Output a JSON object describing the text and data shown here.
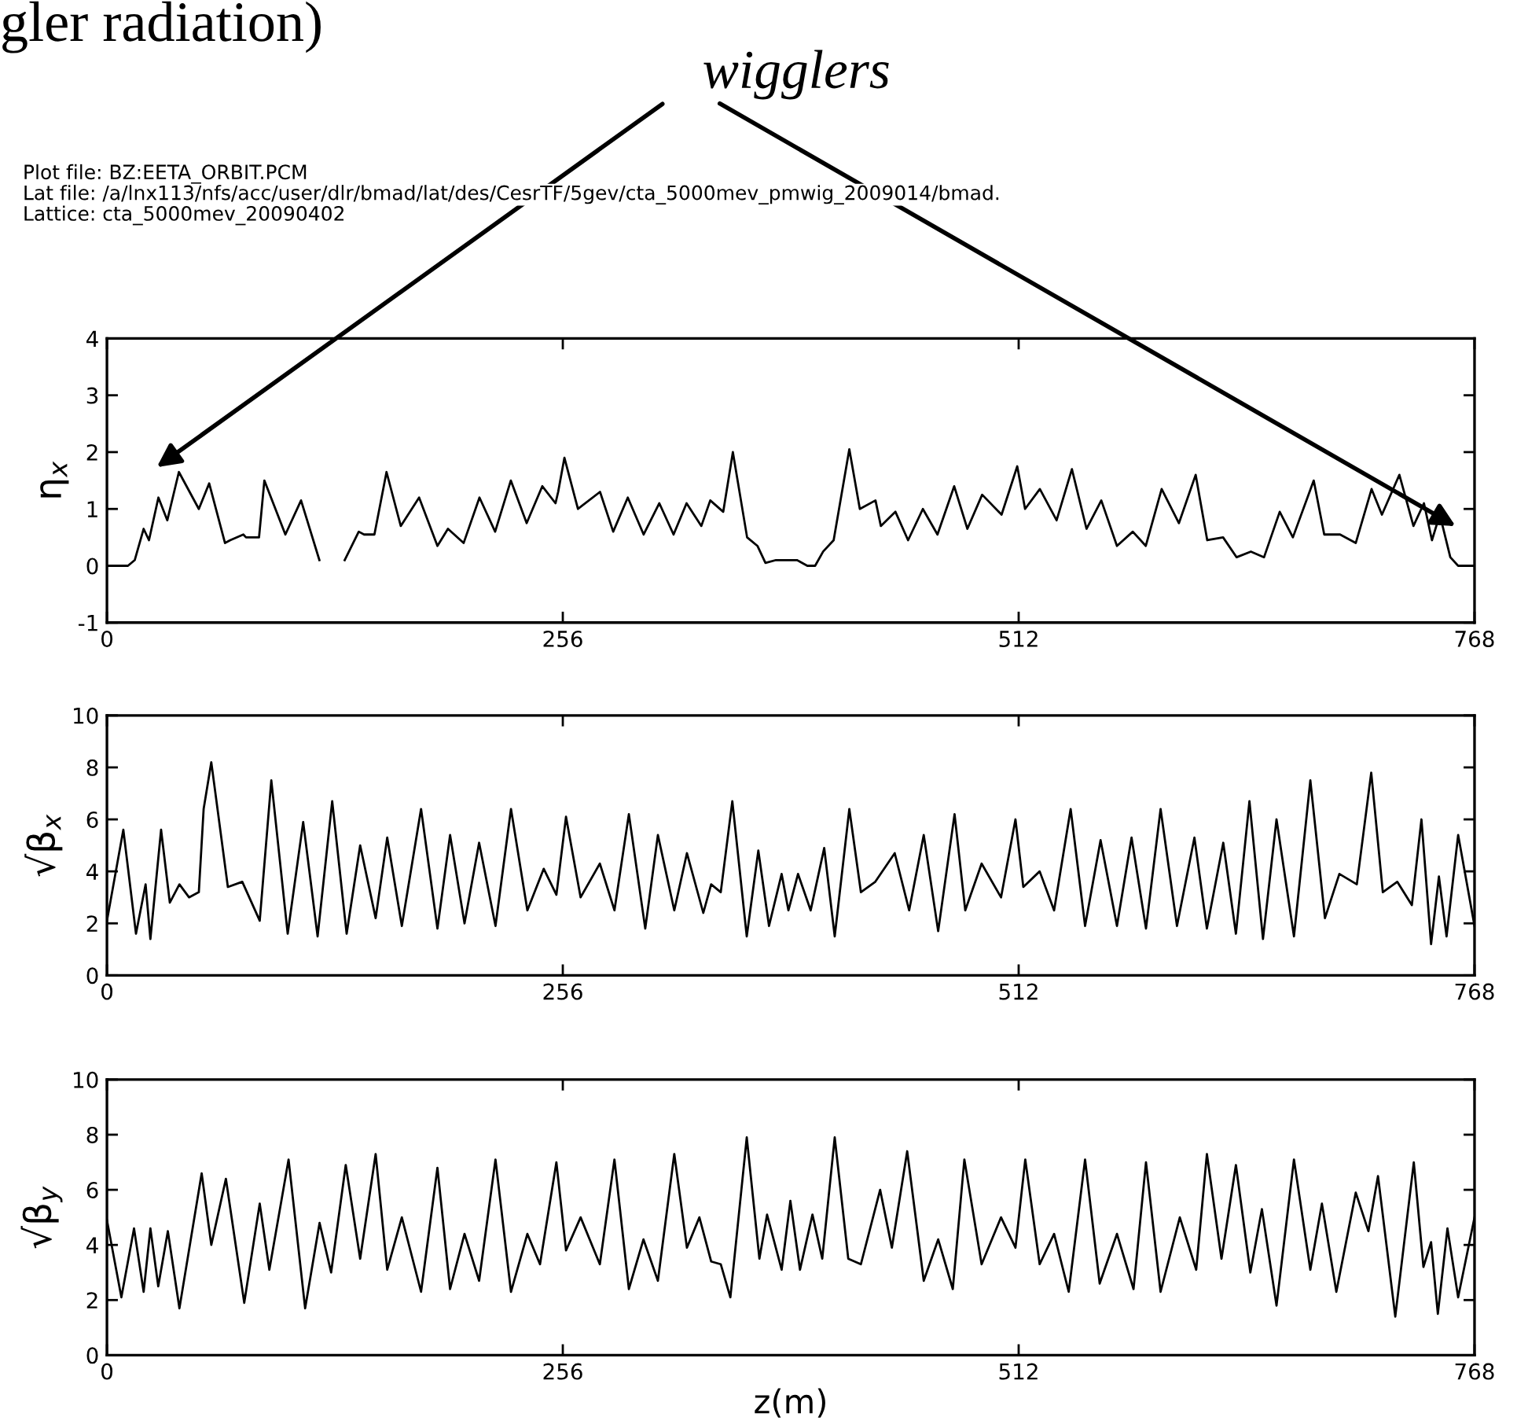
{
  "chart_data": [
    {
      "type": "line",
      "ylabel": "η$_{x}$",
      "xlim": [
        0,
        768
      ],
      "ylim": [
        -1,
        4
      ],
      "xticks": [
        0,
        256,
        512,
        768
      ],
      "yticks": [
        -1,
        0,
        1,
        2,
        3,
        4
      ],
      "grid": false,
      "legend": false,
      "marker": "none",
      "line_style": "solid",
      "annotations": [
        "gler radiation)",
        "wigglers",
        "Plot file: BZ:EETA_ORBIT.PCM",
        "Lat file: /a/lnx113/nfs/acc/user/dlr/bmad/lat/des/CesrTF/5gev/cta_5000mev_pmwig_2009014/bmad.",
        "Lattice: cta_5000mev_20090402"
      ],
      "series": [
        {
          "color": "#000000",
          "x": [
            0,
            11.8,
            15.6,
            20.6,
            23.6,
            28.9,
            33.9,
            40.4,
            51.6,
            57.4,
            66.3,
            69.2,
            76.6,
            78.1,
            85.4,
            88.4,
            100.2,
            109.0,
            119.3,
            126,
            133.5,
            141.4,
            144.4,
            150.2,
            157.0,
            165.0,
            175.3,
            185.6,
            191.5,
            200.3,
            209.2,
            218.0,
            226.8,
            235.7,
            244.5,
            251.9,
            253.4,
            256.9,
            264.5,
            276.9,
            284.3,
            292.5,
            301.4,
            310.2,
            318.2,
            325.5,
            333.8,
            338.8,
            346.1,
            351.5,
            359.5,
            365.3,
            369.8,
            375.7,
            381.6,
            387.5,
            393.3,
            397.7,
            402.2,
            408.1,
            416.9,
            422.8,
            431.6,
            434.6,
            442.8,
            449.9,
            458.2,
            466.4,
            475.8,
            483.2,
            491.5,
            502.4,
            511.2,
            515.6,
            523.9,
            533.3,
            541.9,
            550.1,
            558.4,
            567.2,
            576.1,
            583.4,
            592.3,
            602.0,
            611.4,
            617.9,
            626.8,
            634.4,
            642.4,
            649.8,
            658.6,
            666.0,
            677.7,
            683.6,
            692.5,
            701.3,
            710.2,
            716.0,
            725.8,
            733.7,
            739.6,
            744.1,
            748.5,
            754.4,
            758.8,
            768
          ],
          "values": [
            0,
            0,
            0.1,
            0.65,
            0.45,
            1.2,
            0.8,
            1.65,
            1.0,
            1.45,
            0.4,
            0.45,
            0.55,
            0.5,
            0.5,
            1.5,
            0.55,
            1.15,
            0.1,
            null,
            0.1,
            0.6,
            0.55,
            0.55,
            1.65,
            0.7,
            1.2,
            0.35,
            0.65,
            0.4,
            1.2,
            0.6,
            1.5,
            0.75,
            1.4,
            1.1,
            1.3,
            1.9,
            1.0,
            1.3,
            0.6,
            1.2,
            0.55,
            1.1,
            0.55,
            1.1,
            0.7,
            1.15,
            0.95,
            2.0,
            0.5,
            0.35,
            0.05,
            0.1,
            0.1,
            0.1,
            0,
            0,
            0.25,
            0.45,
            2.05,
            1.0,
            1.15,
            0.7,
            0.95,
            0.45,
            1.0,
            0.55,
            1.4,
            0.65,
            1.25,
            0.9,
            1.75,
            1.0,
            1.35,
            0.8,
            1.7,
            0.65,
            1.15,
            0.35,
            0.6,
            0.35,
            1.35,
            0.75,
            1.6,
            0.45,
            0.5,
            0.15,
            0.25,
            0.15,
            0.95,
            0.5,
            1.5,
            0.55,
            0.55,
            0.4,
            1.35,
            0.9,
            1.6,
            0.7,
            1.1,
            0.45,
            0.9,
            0.15,
            0,
            0
          ]
        }
      ]
    },
    {
      "type": "line",
      "ylabel": "√β$_{x}$",
      "xlim": [
        0,
        768
      ],
      "ylim": [
        0,
        10
      ],
      "xticks": [
        0,
        256,
        512,
        768
      ],
      "yticks": [
        0,
        2,
        4,
        6,
        8,
        10
      ],
      "grid": false,
      "legend": false,
      "marker": "none",
      "line_style": "solid",
      "series": [
        {
          "color": "#000000",
          "x": [
            0,
            9.2,
            16.3,
            21.7,
            24.4,
            30.4,
            35.3,
            40.7,
            46.1,
            51.6,
            54.3,
            58.6,
            67.9,
            76.0,
            85.8,
            92.3,
            101.5,
            110.2,
            118.3,
            126.5,
            134.6,
            142.2,
            150.9,
            157.4,
            165.6,
            176.4,
            185.6,
            192.7,
            200.8,
            209.0,
            218.2,
            226.9,
            236.1,
            245.3,
            252.4,
            257.8,
            266.0,
            276.8,
            285.0,
            293.1,
            302.3,
            309.4,
            318.6,
            325.7,
            334.9,
            339.3,
            344.7,
            351.2,
            359.3,
            365.8,
            371.8,
            378.9,
            382.7,
            388.1,
            395.2,
            402.8,
            408.7,
            416.9,
            423.4,
            431.5,
            442.4,
            450.5,
            458.7,
            466.8,
            476.0,
            482.0,
            491.2,
            502.1,
            510.2,
            514.6,
            523.8,
            531.9,
            541.2,
            549.3,
            558.0,
            567.2,
            575.4,
            583.5,
            591.7,
            600.9,
            610.7,
            617.7,
            626.9,
            634.0,
            641.6,
            649.2,
            656.8,
            666.6,
            675.8,
            684.0,
            692.1,
            701.9,
            710.0,
            716.5,
            724.6,
            732.8,
            738.2,
            743.6,
            748.0,
            752.3,
            758.8,
            768
          ],
          "values": [
            2.1,
            5.6,
            1.6,
            3.5,
            1.4,
            5.6,
            2.8,
            3.5,
            3.0,
            3.2,
            6.4,
            8.2,
            3.4,
            3.6,
            2.1,
            7.5,
            1.6,
            5.9,
            1.5,
            6.7,
            1.6,
            5.0,
            2.2,
            5.3,
            1.9,
            6.4,
            1.8,
            5.4,
            2.0,
            5.1,
            1.9,
            6.4,
            2.5,
            4.1,
            3.1,
            6.1,
            3.0,
            4.3,
            2.5,
            6.2,
            1.8,
            5.4,
            2.5,
            4.7,
            2.4,
            3.5,
            3.2,
            6.7,
            1.5,
            4.8,
            1.9,
            3.9,
            2.5,
            3.9,
            2.5,
            4.9,
            1.5,
            6.4,
            3.2,
            3.6,
            4.7,
            2.5,
            5.4,
            1.7,
            6.2,
            2.5,
            4.3,
            3.0,
            6.0,
            3.4,
            4.0,
            2.5,
            6.4,
            1.9,
            5.2,
            1.9,
            5.3,
            1.8,
            6.4,
            1.9,
            5.3,
            1.8,
            5.1,
            1.6,
            6.7,
            1.4,
            6.0,
            1.5,
            7.5,
            2.2,
            3.9,
            3.5,
            7.8,
            3.2,
            3.6,
            2.7,
            6.0,
            1.2,
            3.8,
            1.5,
            5.4,
            1.9
          ]
        }
      ]
    },
    {
      "type": "line",
      "ylabel": "√β$_{y}$",
      "xlabel": "z(m)",
      "xlim": [
        0,
        768
      ],
      "ylim": [
        0,
        10
      ],
      "xticks": [
        0,
        256,
        512,
        768
      ],
      "yticks": [
        0,
        2,
        4,
        6,
        8,
        10
      ],
      "grid": false,
      "legend": false,
      "marker": "none",
      "line_style": "solid",
      "series": [
        {
          "color": "#000000",
          "x": [
            0,
            8.1,
            15.2,
            20.6,
            24.4,
            28.8,
            34.2,
            40.7,
            53.2,
            58.6,
            66.8,
            77.1,
            85.8,
            91.2,
            102.0,
            111.3,
            119.4,
            125.9,
            134.1,
            142.2,
            150.9,
            157.4,
            165.6,
            176.4,
            185.6,
            192.7,
            200.8,
            209.0,
            218.2,
            226.9,
            236.1,
            243.2,
            252.4,
            257.8,
            266.0,
            276.8,
            285.0,
            293.1,
            301.3,
            309.4,
            318.6,
            325.7,
            332.7,
            339.3,
            344.7,
            350.1,
            359.3,
            366.4,
            370.7,
            378.9,
            383.8,
            389.2,
            396.2,
            401.7,
            408.7,
            416.3,
            423.4,
            434.2,
            440.8,
            449.4,
            458.7,
            466.8,
            475.0,
            481.5,
            491.2,
            502.1,
            510.2,
            515.7,
            523.8,
            531.9,
            540.1,
            549.3,
            557.5,
            567.2,
            576.5,
            583.5,
            591.7,
            602.5,
            611.7,
            617.7,
            625.9,
            634.0,
            642.1,
            648.6,
            656.8,
            666.6,
            675.8,
            682.3,
            690.4,
            701.3,
            708.4,
            713.8,
            723.5,
            733.9,
            739.3,
            743.6,
            747.4,
            752.8,
            758.8,
            768
          ],
          "values": [
            4.9,
            2.1,
            4.6,
            2.3,
            4.6,
            2.5,
            4.5,
            1.7,
            6.6,
            4.0,
            6.4,
            1.9,
            5.5,
            3.1,
            7.1,
            1.7,
            4.8,
            3.0,
            6.9,
            3.5,
            7.3,
            3.1,
            5.0,
            2.3,
            6.8,
            2.4,
            4.4,
            2.7,
            7.1,
            2.3,
            4.4,
            3.3,
            7.0,
            3.8,
            5.0,
            3.3,
            7.1,
            2.4,
            4.2,
            2.7,
            7.3,
            3.9,
            5.0,
            3.4,
            3.3,
            2.1,
            7.9,
            3.5,
            5.1,
            3.1,
            5.6,
            3.1,
            5.1,
            3.5,
            7.9,
            3.5,
            3.3,
            6.0,
            3.9,
            7.4,
            2.7,
            4.2,
            2.4,
            7.1,
            3.3,
            5.0,
            3.9,
            7.1,
            3.3,
            4.4,
            2.3,
            7.1,
            2.6,
            4.4,
            2.4,
            7.0,
            2.3,
            5.0,
            3.1,
            7.3,
            3.5,
            6.9,
            3.0,
            5.3,
            1.8,
            7.1,
            3.1,
            5.5,
            2.3,
            5.9,
            4.5,
            6.5,
            1.4,
            7.0,
            3.2,
            4.1,
            1.5,
            4.6,
            2.1,
            5.0
          ]
        }
      ]
    }
  ]
}
